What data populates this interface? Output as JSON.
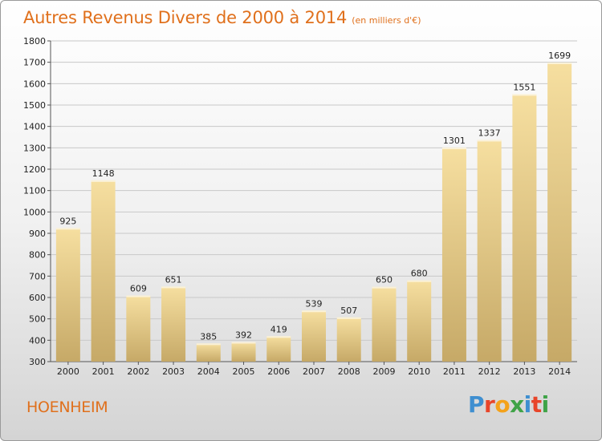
{
  "brand": {
    "name": "Proxiti",
    "letters": [
      {
        "ch": "P",
        "color": "#3f8fd0"
      },
      {
        "ch": "r",
        "color": "#e8452a"
      },
      {
        "ch": "o",
        "color": "#f4a21b"
      },
      {
        "ch": "x",
        "color": "#3fa347"
      },
      {
        "ch": "i",
        "color": "#3f8fd0"
      },
      {
        "ch": "t",
        "color": "#e8452a"
      },
      {
        "ch": "i",
        "color": "#3fa347"
      }
    ]
  },
  "place": "HOENHEIM",
  "colors": {
    "title": "#e0701c",
    "bar_light": "#f6dfa0",
    "bar_dark": "#c6a967"
  },
  "chart_data": {
    "type": "bar",
    "title": "Autres Revenus Divers de 2000 à 2014",
    "subtitle": "(en milliers d'€)",
    "categories": [
      "2000",
      "2001",
      "2002",
      "2003",
      "2004",
      "2005",
      "2006",
      "2007",
      "2008",
      "2009",
      "2010",
      "2011",
      "2012",
      "2013",
      "2014"
    ],
    "values": [
      925,
      1148,
      609,
      651,
      385,
      392,
      419,
      539,
      507,
      650,
      680,
      1301,
      1337,
      1551,
      1699
    ],
    "ylim": [
      300,
      1800
    ],
    "yticks": [
      300,
      400,
      500,
      600,
      700,
      800,
      900,
      1000,
      1100,
      1200,
      1300,
      1400,
      1500,
      1600,
      1700,
      1800
    ],
    "grid": true,
    "data_labels": true
  }
}
